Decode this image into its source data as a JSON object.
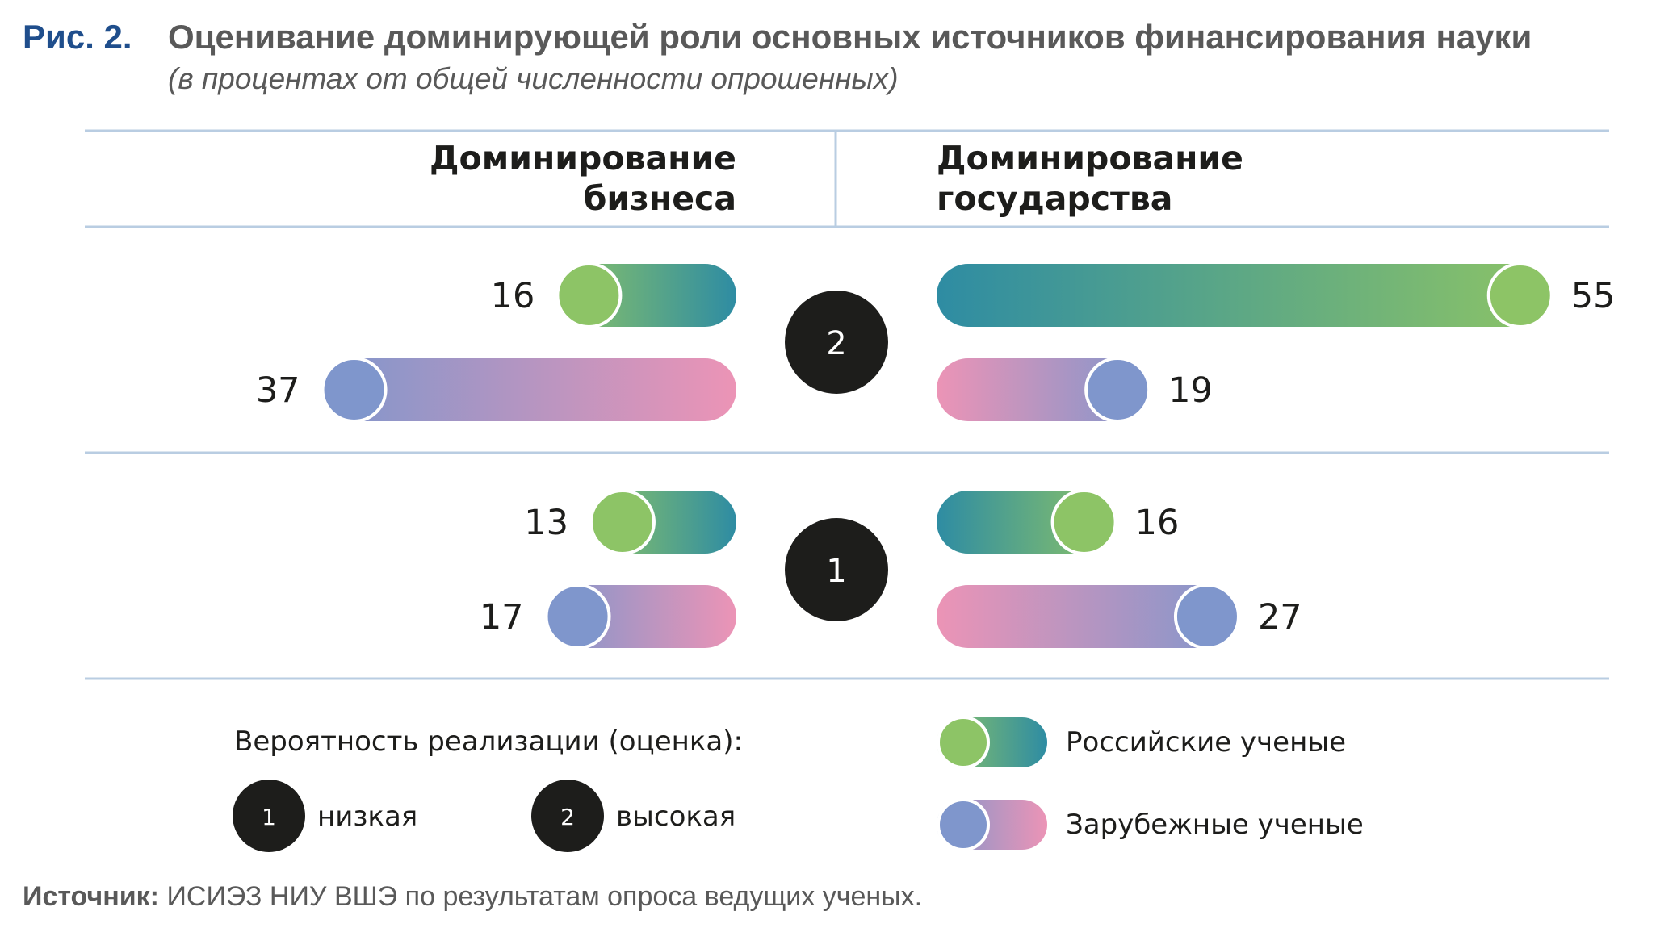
{
  "header": {
    "figure_label": "Рис. 2.",
    "title": "Оценивание доминирующей роли основных источников финансирования науки",
    "subtitle": "(в процентах от общей численности опрошенных)"
  },
  "columns": {
    "left_line1": "Доминирование",
    "left_line2": "бизнеса",
    "right_line1": "Доминирование",
    "right_line2": "государства"
  },
  "colors": {
    "russian_start": "#8dc466",
    "russian_end": "#2e8ca3",
    "foreign_start": "#7f96cc",
    "foreign_end": "#ec94b6",
    "rule": "#b9cde2",
    "badge": "#1d1d1b"
  },
  "chart_data": {
    "type": "bar",
    "groups": [
      {
        "label": "2",
        "business": {
          "russian": 16,
          "foreign": 37
        },
        "government": {
          "russian": 55,
          "foreign": 19
        }
      },
      {
        "label": "1",
        "business": {
          "russian": 13,
          "foreign": 17
        },
        "government": {
          "russian": 16,
          "foreign": 27
        }
      }
    ],
    "series": [
      {
        "key": "russian",
        "name": "Российские ученые"
      },
      {
        "key": "foreign",
        "name": "Зарубежные ученые"
      }
    ]
  },
  "legend": {
    "probability_title": "Вероятность реализации (оценка):",
    "low_num": "1",
    "low_label": "низкая",
    "high_num": "2",
    "high_label": "высокая",
    "russian_label": "Российские ученые",
    "foreign_label": "Зарубежные ученые"
  },
  "source": {
    "label": "Источник:",
    "text": " ИСИЭЗ НИУ ВШЭ по результатам опроса ведущих ученых."
  }
}
